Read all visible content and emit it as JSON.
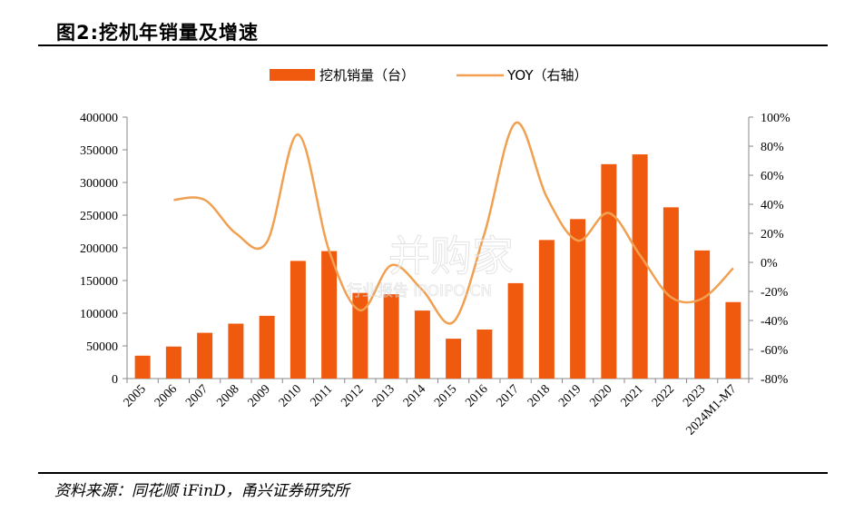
{
  "header": {
    "title": "图2:挖机年销量及增速"
  },
  "footer": {
    "source": "资料来源：同花顺 iFinD，甬兴证券研究所"
  },
  "watermark": {
    "main": "并购家",
    "sub": "行业报告 IPOIPO.CN"
  },
  "colors": {
    "bar": "#F05A0F",
    "line": "#F0A050",
    "axis": "#888888"
  },
  "chart_data": {
    "type": "bar",
    "categories": [
      "2005",
      "2006",
      "2007",
      "2008",
      "2009",
      "2010",
      "2011",
      "2012",
      "2013",
      "2014",
      "2015",
      "2016",
      "2017",
      "2018",
      "2019",
      "2020",
      "2021",
      "2022",
      "2023",
      "2024M1-M7"
    ],
    "series": [
      {
        "name": "挖机销量（台）",
        "type": "bar",
        "axis": "left",
        "values": [
          35000,
          49000,
          70000,
          84000,
          96000,
          180000,
          195000,
          131000,
          129000,
          104000,
          61000,
          75000,
          146000,
          212000,
          244000,
          328000,
          343000,
          262000,
          196000,
          117000
        ]
      },
      {
        "name": "YOY（右轴）",
        "type": "line",
        "axis": "right",
        "values": [
          null,
          0.43,
          0.43,
          0.2,
          0.14,
          0.88,
          0.08,
          -0.33,
          -0.02,
          -0.19,
          -0.41,
          0.2,
          0.96,
          0.45,
          0.15,
          0.34,
          0.05,
          -0.24,
          -0.25,
          -0.04
        ]
      }
    ],
    "y_left": {
      "min": 0,
      "max": 400000,
      "step": 50000,
      "ticks": [
        "0",
        "50000",
        "100000",
        "150000",
        "200000",
        "250000",
        "300000",
        "350000",
        "400000"
      ]
    },
    "y_right": {
      "min": -0.8,
      "max": 1.0,
      "step": 0.2,
      "ticks": [
        "-80%",
        "-60%",
        "-40%",
        "-20%",
        "0%",
        "20%",
        "40%",
        "60%",
        "80%",
        "100%"
      ]
    },
    "legend_position": "top-center",
    "grid": false
  }
}
